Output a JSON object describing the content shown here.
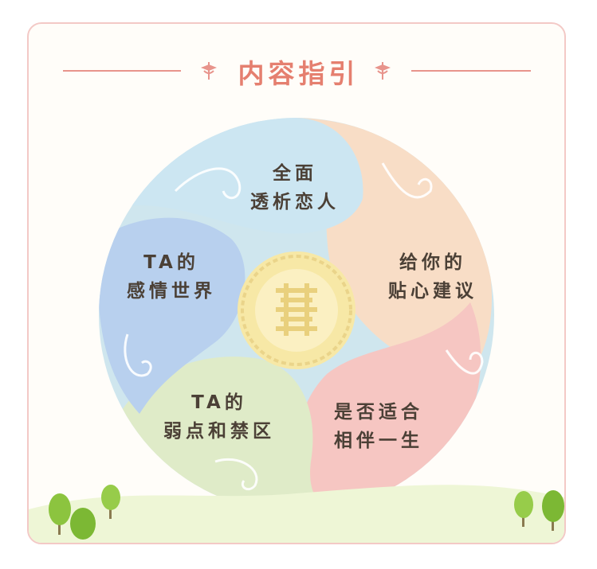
{
  "header": {
    "title": "内容指引"
  },
  "segments": [
    {
      "id": "top",
      "line1": "全面",
      "line2": "透析恋人",
      "color": "#cce6f2"
    },
    {
      "id": "right",
      "line1": "给你的",
      "line2": "贴心建议",
      "color": "#f8ddc6"
    },
    {
      "id": "bottom-right",
      "line1": "是否适合",
      "line2": "相伴一生",
      "color": "#f6c6c2"
    },
    {
      "id": "bottom-left",
      "line1": "TA的",
      "line2": "弱点和禁区",
      "color": "#dfebc8"
    },
    {
      "id": "left",
      "line1": "TA的",
      "line2": "感情世界",
      "color": "#b8d0ee"
    }
  ],
  "center": {
    "symbol": "double-happiness-emblem",
    "color": "#f7e8a6"
  },
  "colors": {
    "accent": "#e57f6f",
    "border": "#f3c9c6",
    "text": "#4b4036",
    "tree": "#8cc43f"
  }
}
